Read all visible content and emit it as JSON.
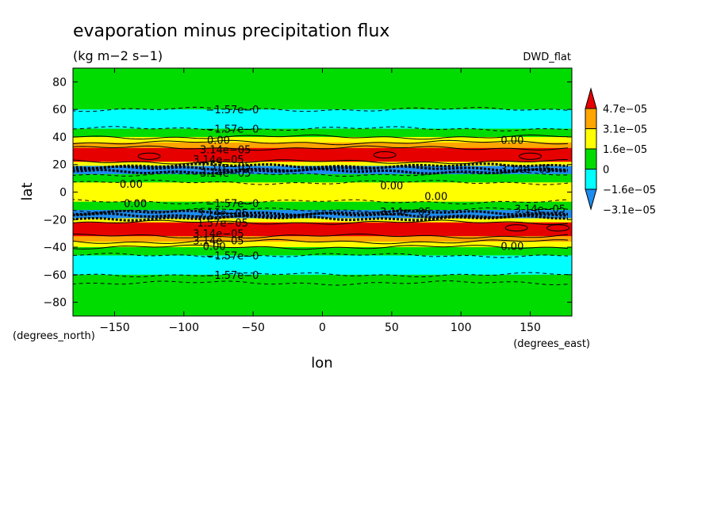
{
  "chart_data": {
    "type": "heatmap",
    "title": "evaporation minus precipitation flux",
    "units": "(kg m−2 s−1)",
    "model": "DWD_flat",
    "xlabel": "lon",
    "ylabel": "lat",
    "x_units": "(degrees_east)",
    "y_units": "(degrees_north)",
    "xlim": [
      -180,
      180
    ],
    "ylim": [
      -90,
      90
    ],
    "x_ticks": [
      -150,
      -100,
      -50,
      0,
      50,
      100,
      150
    ],
    "x_tick_labels": [
      "−150",
      "−100",
      "−50",
      "0",
      "50",
      "100",
      "150"
    ],
    "y_ticks": [
      80,
      60,
      40,
      20,
      0,
      -20,
      -40,
      -60,
      -80
    ],
    "y_tick_labels": [
      "80",
      "60",
      "40",
      "20",
      "0",
      "−20",
      "−40",
      "−60",
      "−80"
    ],
    "colorbar": {
      "levels": [
        -3.1e-05,
        -1.6e-05,
        0,
        1.6e-05,
        3.1e-05,
        4.7e-05
      ],
      "labels": [
        "−3.1e−05",
        "−1.6e−05",
        "0",
        "1.6e−05",
        "3.1e−05",
        "4.7e−05"
      ],
      "colors": [
        "#1e8cf0",
        "#00ffff",
        "#00dc00",
        "#ffff00",
        "#ffa500",
        "#e60000"
      ],
      "extend": "both"
    },
    "zonal_bands": [
      {
        "lat": [
          66,
          90
        ],
        "value": -1e-05
      },
      {
        "lat": [
          60,
          66
        ],
        "value": -1.2e-05
      },
      {
        "lat": [
          46,
          60
        ],
        "value": -1.9e-05
      },
      {
        "lat": [
          40,
          46
        ],
        "value": -8e-06
      },
      {
        "lat": [
          36,
          40
        ],
        "value": 8e-06
      },
      {
        "lat": [
          32,
          36
        ],
        "value": 2e-05
      },
      {
        "lat": [
          22,
          32
        ],
        "value": 3.4e-05
      },
      {
        "lat": [
          19,
          22
        ],
        "value": 1e-05
      },
      {
        "lat": [
          13,
          19
        ],
        "value": -3.4e-05
      },
      {
        "lat": [
          7,
          13
        ],
        "value": -1e-05
      },
      {
        "lat": [
          -7,
          7
        ],
        "value": 5e-06
      },
      {
        "lat": [
          -13,
          -7
        ],
        "value": -1e-05
      },
      {
        "lat": [
          -19,
          -13
        ],
        "value": -3.4e-05
      },
      {
        "lat": [
          -22,
          -19
        ],
        "value": 1e-05
      },
      {
        "lat": [
          -32,
          -22
        ],
        "value": 3.4e-05
      },
      {
        "lat": [
          -36,
          -32
        ],
        "value": 2e-05
      },
      {
        "lat": [
          -40,
          -36
        ],
        "value": 8e-06
      },
      {
        "lat": [
          -46,
          -40
        ],
        "value": -8e-06
      },
      {
        "lat": [
          -60,
          -46
        ],
        "value": -1.9e-05
      },
      {
        "lat": [
          -66,
          -60
        ],
        "value": -1.2e-05
      },
      {
        "lat": [
          -90,
          -66
        ],
        "value": -1e-05
      }
    ],
    "maxima": [
      {
        "lon": -125,
        "lat": 26,
        "value": 5e-05
      },
      {
        "lon": 150,
        "lat": 26,
        "value": 5e-05
      },
      {
        "lon": 45,
        "lat": 27,
        "value": 4.8e-05
      },
      {
        "lon": 170,
        "lat": -26,
        "value": 5e-05
      },
      {
        "lon": 140,
        "lat": -26,
        "value": 4.8e-05
      }
    ],
    "contour_lines": [
      {
        "lat": 60,
        "style": "dashed"
      },
      {
        "lat": 46,
        "style": "dashed"
      },
      {
        "lat": 40,
        "style": "solid"
      },
      {
        "lat": 36,
        "style": "solid"
      },
      {
        "lat": 32,
        "style": "solid"
      },
      {
        "lat": 22,
        "style": "solid"
      },
      {
        "lat": 19,
        "style": "bold"
      },
      {
        "lat": 17,
        "style": "bold"
      },
      {
        "lat": 15,
        "style": "bold"
      },
      {
        "lat": 13,
        "style": "dashed"
      },
      {
        "lat": 7,
        "style": "dashed"
      },
      {
        "lat": -7,
        "style": "dashed"
      },
      {
        "lat": -13,
        "style": "dashed"
      },
      {
        "lat": -15,
        "style": "bold"
      },
      {
        "lat": -17,
        "style": "bold"
      },
      {
        "lat": -19,
        "style": "bold"
      },
      {
        "lat": -22,
        "style": "solid"
      },
      {
        "lat": -32,
        "style": "solid"
      },
      {
        "lat": -36,
        "style": "solid"
      },
      {
        "lat": -40,
        "style": "solid"
      },
      {
        "lat": -46,
        "style": "dashed"
      },
      {
        "lat": -60,
        "style": "dashed"
      },
      {
        "lat": -66,
        "style": "dashed"
      }
    ],
    "contour_labels": [
      {
        "lon": -65,
        "lat": 60,
        "text": "−1.57e−0"
      },
      {
        "lon": -65,
        "lat": 46,
        "text": "−1.57e−0"
      },
      {
        "lon": -75,
        "lat": 38,
        "text": "0.00"
      },
      {
        "lon": 137,
        "lat": 38,
        "text": "0.00"
      },
      {
        "lon": -70,
        "lat": 31,
        "text": "3.14e−05"
      },
      {
        "lon": -75,
        "lat": 24,
        "text": "3.14e−05"
      },
      {
        "lon": -70,
        "lat": 19,
        "text": "1.57e−05"
      },
      {
        "lon": -70,
        "lat": 14,
        "text": "3.14e−05"
      },
      {
        "lon": 147,
        "lat": 17,
        "text": "3.14e−05"
      },
      {
        "lon": -138,
        "lat": 6,
        "text": "0.00"
      },
      {
        "lon": 50,
        "lat": 5,
        "text": "0.00"
      },
      {
        "lon": 82,
        "lat": -3,
        "text": "0.00"
      },
      {
        "lon": -135,
        "lat": -8,
        "text": "0.00"
      },
      {
        "lon": -65,
        "lat": -8,
        "text": "−1.57e−0"
      },
      {
        "lon": -72,
        "lat": -15,
        "text": "3.14e−05"
      },
      {
        "lon": 60,
        "lat": -14,
        "text": "3.14e−05"
      },
      {
        "lon": 157,
        "lat": -12,
        "text": "3.14e−05"
      },
      {
        "lon": -72,
        "lat": -22,
        "text": "1.57e−05"
      },
      {
        "lon": -75,
        "lat": -30,
        "text": "3.14e−05"
      },
      {
        "lon": -75,
        "lat": -35,
        "text": "3.14e−05"
      },
      {
        "lon": -78,
        "lat": -39,
        "text": "0.00"
      },
      {
        "lon": 137,
        "lat": -39,
        "text": "0.00"
      },
      {
        "lon": -65,
        "lat": -46,
        "text": "−1.57e−0"
      },
      {
        "lon": -65,
        "lat": -60,
        "text": "−1.57e−0"
      }
    ]
  }
}
